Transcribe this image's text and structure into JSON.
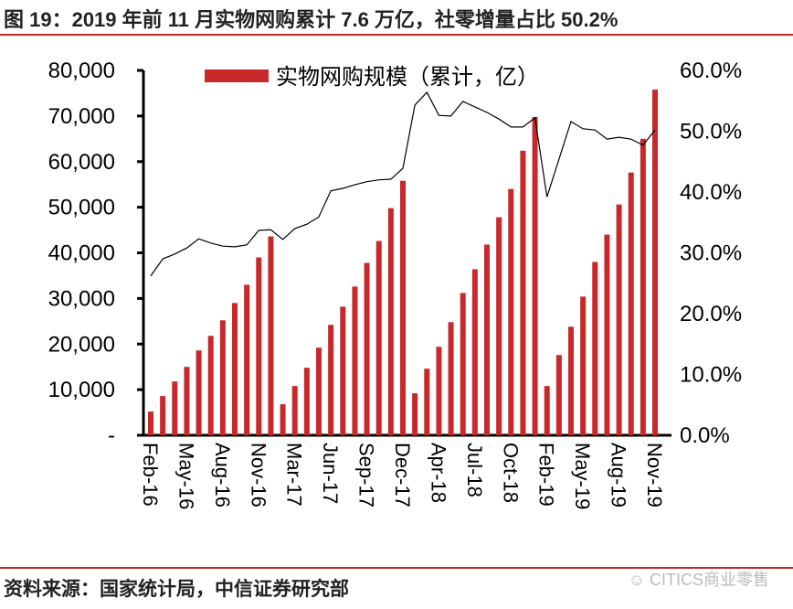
{
  "title": "图 19：2019 年前 11 月实物网购累计 7.6 万亿，社零增量占比 50.2%",
  "footer": "资料来源：国家统计局，中信证券研究部",
  "watermark": "CITICS商业零售",
  "chart_data": {
    "type": "bar+line",
    "legend": [
      {
        "name": "实物网购规模（累计，亿）",
        "color": "#c8282a"
      }
    ],
    "legend_placement": "top-center",
    "categories": [
      "Feb-16",
      "Mar-16",
      "Apr-16",
      "May-16",
      "Jun-16",
      "Jul-16",
      "Aug-16",
      "Sep-16",
      "Oct-16",
      "Nov-16",
      "Dec-16",
      "Feb-17",
      "Mar-17",
      "Apr-17",
      "May-17",
      "Jun-17",
      "Jul-17",
      "Aug-17",
      "Sep-17",
      "Oct-17",
      "Nov-17",
      "Dec-17",
      "Feb-18",
      "Mar-18",
      "Apr-18",
      "May-18",
      "Jun-18",
      "Jul-18",
      "Aug-18",
      "Sep-18",
      "Oct-18",
      "Nov-18",
      "Dec-18",
      "Feb-19",
      "Mar-19",
      "Apr-19",
      "May-19",
      "Jun-19",
      "Jul-19",
      "Aug-19",
      "Sep-19",
      "Oct-19",
      "Nov-19"
    ],
    "x_tick_labels": [
      "Feb-16",
      "May-16",
      "Aug-16",
      "Nov-16",
      "Mar-17",
      "Jun-17",
      "Sep-17",
      "Dec-17",
      "Apr-18",
      "Jul-18",
      "Oct-18",
      "Feb-19",
      "May-19",
      "Aug-19",
      "Nov-19"
    ],
    "series": [
      {
        "name": "实物网购规模（累计，亿）",
        "type": "bar",
        "axis": "left",
        "color": "#c8282a",
        "values": [
          5200,
          8600,
          11800,
          15000,
          18600,
          21800,
          25200,
          29000,
          33000,
          39000,
          43600,
          6800,
          10800,
          14800,
          19200,
          24200,
          28200,
          32600,
          37800,
          42600,
          49800,
          55800,
          9200,
          14600,
          19400,
          24800,
          31200,
          36400,
          41800,
          47800,
          54000,
          62400,
          69800,
          10800,
          17600,
          23800,
          30400,
          38000,
          44000,
          50600,
          57600,
          65000,
          75800
        ]
      },
      {
        "type": "line",
        "axis": "right",
        "color": "#000000",
        "values": [
          26.2,
          29.0,
          29.8,
          30.8,
          32.3,
          31.6,
          31.1,
          31.0,
          31.3,
          33.7,
          33.8,
          32.2,
          34.0,
          34.7,
          35.9,
          40.2,
          40.6,
          41.2,
          41.7,
          42.0,
          42.1,
          43.9,
          54.3,
          56.4,
          52.6,
          52.5,
          54.9,
          54.0,
          53.1,
          52.0,
          50.7,
          50.7,
          52.2,
          39.2,
          45.4,
          51.6,
          50.4,
          50.2,
          48.7,
          49.0,
          48.7,
          47.7,
          50.2
        ]
      }
    ],
    "left_axis": {
      "ylim": [
        0,
        80000
      ],
      "tick_labels": [
        "-",
        "10,000",
        "20,000",
        "30,000",
        "40,000",
        "50,000",
        "60,000",
        "70,000",
        "80,000"
      ]
    },
    "right_axis": {
      "ylim": [
        0,
        60
      ],
      "tick_labels": [
        "0.0%",
        "10.0%",
        "20.0%",
        "30.0%",
        "40.0%",
        "50.0%",
        "60.0%"
      ]
    },
    "grid": false
  }
}
